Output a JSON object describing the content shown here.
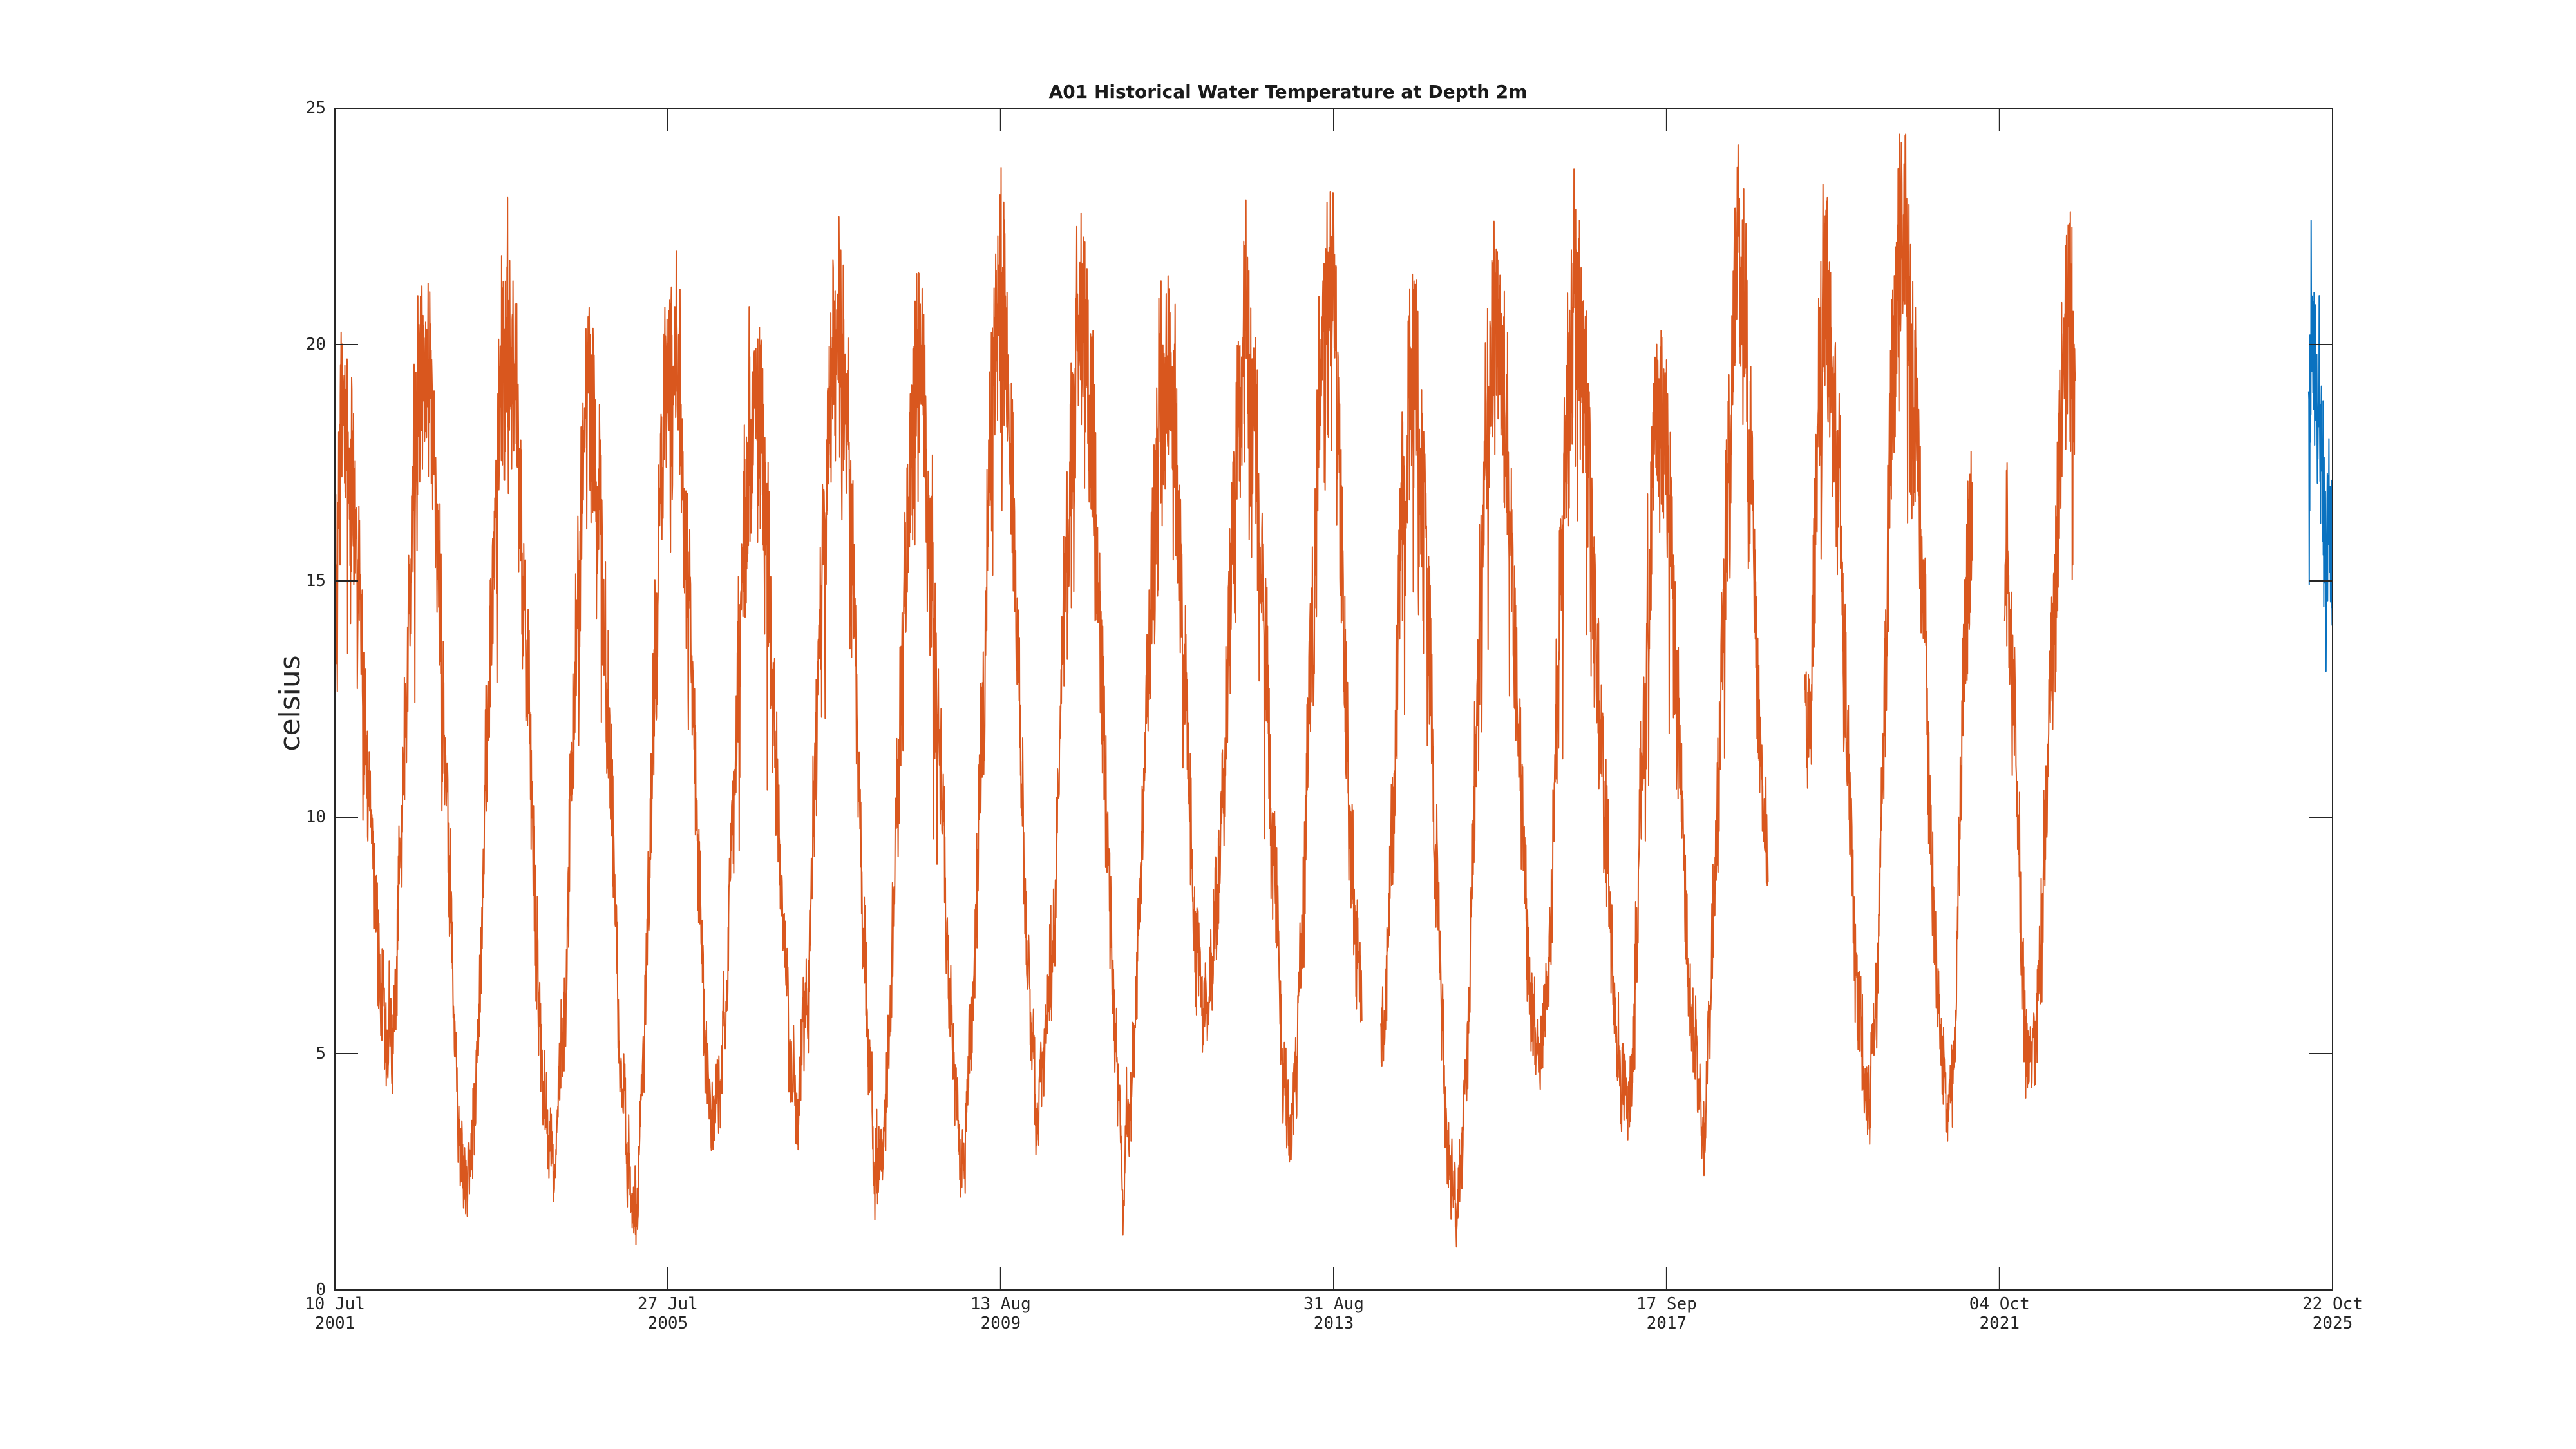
{
  "page": {
    "background": "#ffffff"
  },
  "chart_data": {
    "type": "line",
    "title": "A01 Historical Water Temperature at Depth 2m",
    "ylabel": "celsius",
    "xlabel": "",
    "grid": false,
    "legend": null,
    "axis_color": "#262626",
    "background_color": "#ffffff",
    "ylim": [
      0,
      25
    ],
    "yticks": [
      0,
      5,
      10,
      15,
      20,
      25
    ],
    "xlim": [
      "2001-07-10",
      "2025-10-22"
    ],
    "xticks": [
      {
        "line1": "10 Jul",
        "line2": "2001",
        "date": "2001-07-10"
      },
      {
        "line1": "27 Jul",
        "line2": "2005",
        "date": "2005-07-27"
      },
      {
        "line1": "13 Aug",
        "line2": "2009",
        "date": "2009-08-13"
      },
      {
        "line1": "31 Aug",
        "line2": "2013",
        "date": "2013-08-31"
      },
      {
        "line1": "17 Sep",
        "line2": "2017",
        "date": "2017-09-17"
      },
      {
        "line1": "04 Oct",
        "line2": "2021",
        "date": "2021-10-04"
      },
      {
        "line1": "22 Oct",
        "line2": "2025",
        "date": "2025-10-22"
      }
    ],
    "series": [
      {
        "name": "historical-temperature",
        "color": "#d9571e",
        "line_width": 2,
        "segments": [
          [
            [
              "2001-07-10",
              14.5
            ],
            [
              "2001-08-13",
              18.5
            ],
            [
              "2002-03-08",
              5.1
            ],
            [
              "2002-08-10",
              20.2
            ],
            [
              "2003-02-13",
              2.4
            ],
            [
              "2003-08-15",
              20.5
            ],
            [
              "2004-02-28",
              2.6
            ],
            [
              "2004-08-15",
              18.7
            ],
            [
              "2005-02-21",
              2.0
            ],
            [
              "2005-08-12",
              19.8
            ],
            [
              "2006-02-24",
              3.8
            ],
            [
              "2006-08-15",
              19.0
            ],
            [
              "2007-02-25",
              4.0
            ],
            [
              "2007-08-15",
              20.4
            ],
            [
              "2008-02-20",
              2.9
            ],
            [
              "2008-08-15",
              19.2
            ],
            [
              "2009-02-20",
              3.2
            ],
            [
              "2009-08-13",
              20.7
            ],
            [
              "2010-01-25",
              4.0
            ],
            [
              "2010-08-15",
              20.4
            ],
            [
              "2011-02-15",
              3.1
            ],
            [
              "2011-08-15",
              19.4
            ],
            [
              "2012-02-10",
              5.8
            ],
            [
              "2012-08-10",
              20.0
            ],
            [
              "2013-02-20",
              3.6
            ],
            [
              "2013-08-15",
              21.7
            ],
            [
              "2013-12-18",
              7.2
            ]
          ],
          [
            [
              "2013-12-22",
              6.6
            ],
            [
              "2014-01-04",
              6.4
            ]
          ],
          [
            [
              "2014-03-28",
              5.4
            ],
            [
              "2014-08-20",
              19.2
            ],
            [
              "2015-02-21",
              1.6
            ],
            [
              "2015-08-15",
              20.1
            ],
            [
              "2016-02-28",
              4.7
            ],
            [
              "2016-08-10",
              20.5
            ],
            [
              "2017-03-20",
              4.1
            ],
            [
              "2017-08-15",
              18.7
            ],
            [
              "2018-02-16",
              3.9
            ],
            [
              "2018-08-12",
              21.2
            ],
            [
              "2018-12-12",
              9.2
            ]
          ],
          [
            [
              "2019-05-24",
              12.8
            ],
            [
              "2019-06-03",
              11.6
            ],
            [
              "2019-08-15",
              20.6
            ],
            [
              "2020-03-03",
              4.3
            ],
            [
              "2020-07-27",
              22.6
            ],
            [
              "2021-02-18",
              3.9
            ],
            [
              "2021-06-07",
              16.5
            ]
          ],
          [
            [
              "2021-10-27",
              15.7
            ],
            [
              "2022-02-17",
              4.9
            ],
            [
              "2022-08-24",
              21.2
            ],
            [
              "2022-09-06",
              18.8
            ]
          ]
        ]
      },
      {
        "name": "recent-temperature",
        "color": "#0a72c0",
        "line_width": 2,
        "segments": [
          [
            [
              "2025-07-08",
              19.5
            ],
            [
              "2025-07-25",
              19.8
            ],
            [
              "2025-08-20",
              18.3
            ],
            [
              "2025-09-20",
              16.3
            ],
            [
              "2025-10-22",
              14.6
            ]
          ]
        ]
      }
    ],
    "noise": {
      "seed": 20251022,
      "step_days": 1.2,
      "base_amp": 0.55,
      "amp_per_degree": 0.085,
      "wander": 0.8,
      "wander_decay": 0.86,
      "spike_prob": 0.045,
      "spike_env_threshold": 13,
      "spike_min": 1.5,
      "spike_rand": 2.5,
      "spike_decay": 0.55,
      "value_clamp": [
        0.4,
        24.45
      ]
    },
    "observed_extremes": {
      "summer_peak_tops": {
        "2001": 20.3,
        "2002": 22.0,
        "2003": 22.3,
        "2004": 20.5,
        "2005": 21.6,
        "2006": 20.8,
        "2007": 22.2,
        "2008": 21.0,
        "2009": 22.5,
        "2010": 22.2,
        "2011": 21.2,
        "2012": 21.8,
        "2013": 23.5,
        "2014": 21.0,
        "2015": 21.9,
        "2016": 22.3,
        "2017": 20.5,
        "2018": 23.0,
        "2019": 22.4,
        "2020": 24.4,
        "2021": 17.6,
        "2022": 23.0
      },
      "winter_trough_mins": {
        "2002": 4.4,
        "2003": 1.7,
        "2004": 1.9,
        "2005": 1.3,
        "2006": 3.1,
        "2007": 3.3,
        "2008": 2.2,
        "2009": 2.5,
        "2010": 3.3,
        "2011": 2.4,
        "2012": 5.1,
        "2013": 2.9,
        "2015": 0.9,
        "2016": 4.0,
        "2017": 3.4,
        "2018": 3.2,
        "2020": 3.6,
        "2021": 3.2,
        "2022": 4.2
      },
      "recent_blue_range": [
        13.8,
        21.5
      ]
    }
  }
}
